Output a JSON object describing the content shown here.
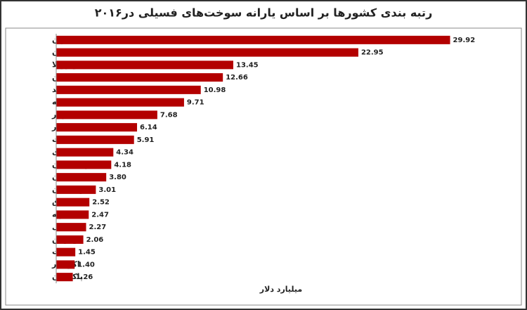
{
  "chart_data": {
    "type": "barh",
    "title": "رتبه بندی کشورها بر اساس یارانه سوخت‌های فسیلی در۲۰۱۶",
    "xlabel": "میلیارد دلار",
    "categories": [
      "ایران",
      "عربستان",
      "ونزوئلا",
      "چین",
      "هند",
      "روسیه",
      "الجزایر",
      "مصر",
      "امارات",
      "اندونزی",
      "ترکمنستان",
      "ازبکستان",
      "قزاقستان",
      "عراق",
      "نیجریه",
      "لیبی",
      "اوکراین",
      "کویت",
      "اکوادور",
      "پاکستان"
    ],
    "values": [
      29.92,
      22.95,
      13.45,
      12.66,
      10.98,
      9.71,
      7.68,
      6.14,
      5.91,
      4.34,
      4.18,
      3.8,
      3.01,
      2.52,
      2.47,
      2.27,
      2.06,
      1.45,
      1.4,
      1.26
    ],
    "value_labels": [
      "29.92",
      "22.95",
      "13.45",
      "12.66",
      "10.98",
      "9.71",
      "7.68",
      "6.14",
      "5.91",
      "4.34",
      "4.18",
      "3.80",
      "3.01",
      "2.52",
      "2.47",
      "2.27",
      "2.06",
      "1.45",
      "1.40",
      "1.26"
    ],
    "color": "#b30000",
    "xlim": [
      0,
      34
    ]
  }
}
